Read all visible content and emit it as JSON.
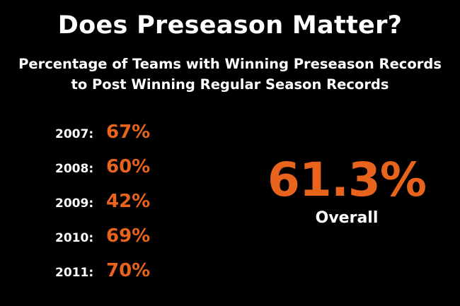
{
  "title": "Does Preseason Matter?",
  "subtitle": {
    "line1": "Percentage of Teams with Winning Preseason Records",
    "line2": "to Post Winning Regular Season Records"
  },
  "years": [
    {
      "year": "2007:",
      "value": "67%"
    },
    {
      "year": "2008:",
      "value": "60%"
    },
    {
      "year": "2009:",
      "value": "42%"
    },
    {
      "year": "2010:",
      "value": "69%"
    },
    {
      "year": "2011:",
      "value": "70%"
    }
  ],
  "overall": {
    "value": "61.3%",
    "label": "Overall"
  },
  "colors": {
    "background": "#000000",
    "text": "#ffffff",
    "accent": "#e8641c"
  }
}
